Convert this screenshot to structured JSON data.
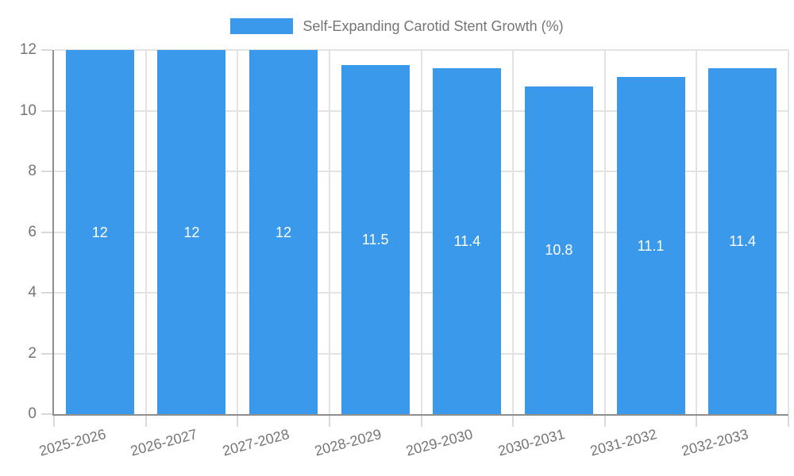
{
  "chart_data": {
    "type": "bar",
    "title": "Self-Expanding Carotid Stent Growth (%)",
    "categories": [
      "2025-2026",
      "2026-2027",
      "2027-2028",
      "2028-2029",
      "2029-2030",
      "2030-2031",
      "2031-2032",
      "2032-2033"
    ],
    "values": [
      12,
      12,
      12,
      11.5,
      11.4,
      10.8,
      11.1,
      11.4
    ],
    "value_labels": [
      "12",
      "12",
      "12",
      "11.5",
      "11.4",
      "10.8",
      "11.1",
      "11.4"
    ],
    "yticks": [
      "0",
      "2",
      "4",
      "6",
      "8",
      "10",
      "12"
    ],
    "ylim": [
      0,
      12
    ],
    "xlabel": "",
    "ylabel": "",
    "grid": "on",
    "legend_position": "top",
    "colors": {
      "bar": "#3b99ec",
      "value_label": "#ffffff",
      "axis": "#8f8f8f",
      "gridline": "#e3e3e3",
      "tick": "#d9d9d9",
      "text": "#757575"
    }
  }
}
